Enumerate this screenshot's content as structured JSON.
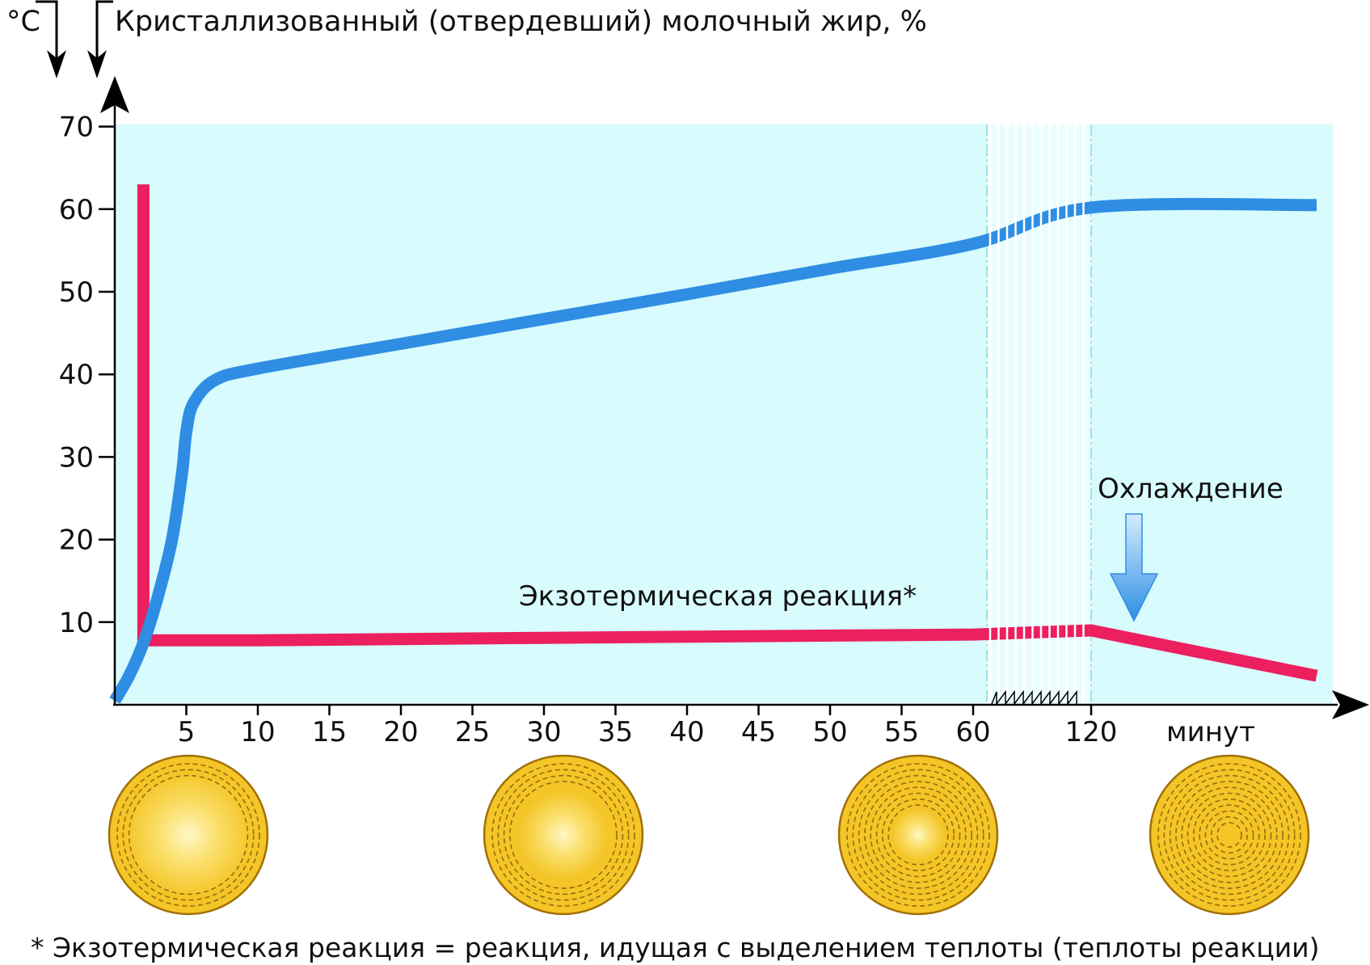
{
  "chart_data": {
    "type": "line",
    "y_unit_left": "°C",
    "y_title": "Кристаллизованный (отвердевший) молочный жир, %",
    "y_ticks": [
      "10",
      "20",
      "30",
      "40",
      "50",
      "60",
      "70"
    ],
    "ylim": [
      0,
      70
    ],
    "x_ticks": [
      "5",
      "10",
      "15",
      "20",
      "25",
      "30",
      "35",
      "40",
      "45",
      "50",
      "55",
      "60",
      "120"
    ],
    "x_unit": "минут",
    "x_axis_break": [
      60,
      120
    ],
    "background": "#d8fbfd",
    "series": [
      {
        "color": "#2f8ee3",
        "points": [
          [
            0,
            0.5
          ],
          [
            1,
            3.5
          ],
          [
            2,
            7.5
          ],
          [
            3,
            13
          ],
          [
            4,
            20
          ],
          [
            4.7,
            28
          ],
          [
            5,
            33
          ],
          [
            5.5,
            36.5
          ],
          [
            7,
            39.3
          ],
          [
            10,
            40.7
          ],
          [
            20,
            43.7
          ],
          [
            30,
            46.7
          ],
          [
            40,
            49.7
          ],
          [
            50,
            52.8
          ],
          [
            60,
            55.8
          ],
          [
            120,
            60.2
          ],
          [
            150,
            60.5
          ]
        ]
      },
      {
        "color": "#ec1f5f",
        "points": [
          [
            2,
            63
          ],
          [
            2,
            7.8
          ],
          [
            10,
            7.8
          ],
          [
            30,
            8.1
          ],
          [
            60,
            8.5
          ],
          [
            120,
            9
          ],
          [
            150,
            3.5
          ]
        ]
      }
    ],
    "annotations": {
      "exothermic_label": "Экзотермическая реакция*",
      "cooling_label": "Охлаждение"
    },
    "footnote": "* Экзотермическая реакция = реакция, идущая с выделением теплоты (теплоты реакции)"
  },
  "globules": [
    {
      "at": "5",
      "rings": 3,
      "center_glow": "large"
    },
    {
      "at": "30",
      "rings": 4,
      "center_glow": "medium"
    },
    {
      "at": "60",
      "rings": 8,
      "center_glow": "small"
    },
    {
      "at": "120",
      "rings": 11,
      "center_glow": "none"
    }
  ],
  "colors": {
    "crystallized_fat_line": "#2f8ee3",
    "temperature_line": "#ec1f5f",
    "plot_background": "#d8fbfd",
    "globule_fill": "#f3c526",
    "globule_stroke": "#a07008",
    "cooling_arrow": "#5aaef0"
  }
}
